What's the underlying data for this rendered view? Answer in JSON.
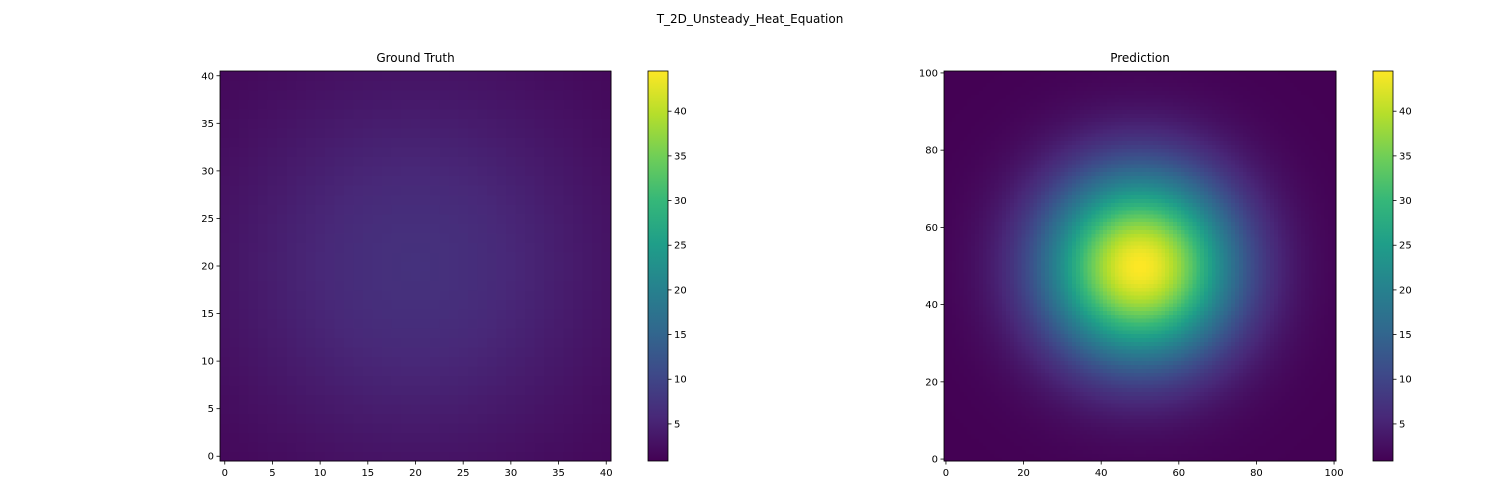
{
  "figure": {
    "title": "T_2D_Unsteady_Heat_Equation"
  },
  "colormap": {
    "name": "viridis",
    "stops": [
      "#440154",
      "#482878",
      "#3e4989",
      "#31688e",
      "#26828e",
      "#1f9e89",
      "#35b779",
      "#6ece58",
      "#b5de2b",
      "#fde725"
    ]
  },
  "chart_data": [
    {
      "type": "heatmap",
      "title": "Ground Truth",
      "xlabel": "",
      "ylabel": "",
      "grid_size": [
        41,
        41
      ],
      "xlim": [
        -0.5,
        40.5
      ],
      "ylim": [
        -0.5,
        40.5
      ],
      "x_ticks": [
        0,
        5,
        10,
        15,
        20,
        25,
        30,
        35,
        40
      ],
      "y_ticks": [
        0,
        5,
        10,
        15,
        20,
        25,
        30,
        35,
        40
      ],
      "peak_location": [
        20,
        20
      ],
      "peak_value": 7,
      "background_value": 1.1,
      "spread": 14,
      "colorbar": {
        "range": [
          0.85,
          44.5
        ],
        "ticks": [
          5,
          10,
          15,
          20,
          25,
          30,
          35,
          40
        ]
      }
    },
    {
      "type": "heatmap",
      "title": "Prediction",
      "xlabel": "",
      "ylabel": "",
      "grid_size": [
        101,
        101
      ],
      "xlim": [
        -0.5,
        100.5
      ],
      "ylim": [
        -0.5,
        100.5
      ],
      "x_ticks": [
        0,
        20,
        40,
        60,
        80,
        100
      ],
      "y_ticks": [
        0,
        20,
        40,
        60,
        80,
        100
      ],
      "peak_location": [
        50,
        50
      ],
      "peak_value": 44.5,
      "background_value": 0.85,
      "spread": 17,
      "colorbar": {
        "range": [
          0.85,
          44.5
        ],
        "ticks": [
          5,
          10,
          15,
          20,
          25,
          30,
          35,
          40
        ]
      }
    }
  ]
}
